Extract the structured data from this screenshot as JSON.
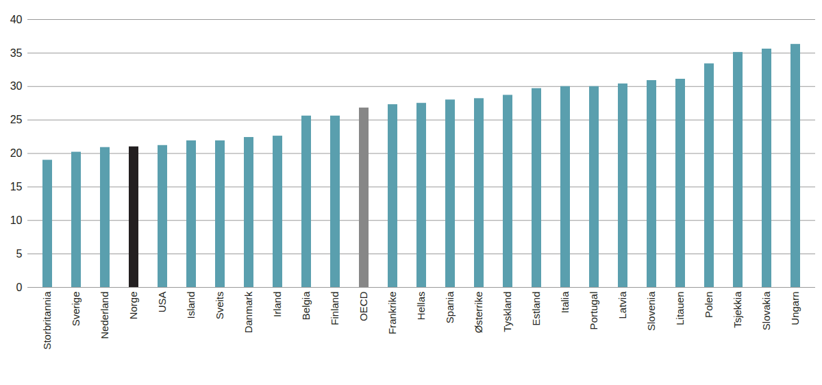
{
  "chart_data": {
    "type": "bar",
    "categories": [
      "Storbritannia",
      "Sverige",
      "Nederland",
      "Norge",
      "USA",
      "Island",
      "Sveits",
      "Danmark",
      "Irland",
      "Belgia",
      "Finland",
      "OECD",
      "Frankrike",
      "Hellas",
      "Spania",
      "Østerrike",
      "Tyskland",
      "Estland",
      "Italia",
      "Portugal",
      "Latvia",
      "Slovenia",
      "Litauen",
      "Polen",
      "Tsjekkia",
      "Slovakia",
      "Ungarn"
    ],
    "values": [
      19.0,
      20.2,
      20.9,
      21.0,
      21.2,
      21.9,
      21.9,
      22.4,
      22.6,
      25.6,
      25.6,
      26.8,
      27.3,
      27.5,
      28.0,
      28.2,
      28.7,
      29.7,
      30.0,
      30.0,
      30.4,
      30.9,
      31.1,
      33.4,
      35.1,
      35.6,
      36.3
    ],
    "colors": [
      "#5a9fae",
      "#5a9fae",
      "#5a9fae",
      "#231f20",
      "#5a9fae",
      "#5a9fae",
      "#5a9fae",
      "#5a9fae",
      "#5a9fae",
      "#5a9fae",
      "#5a9fae",
      "#878787",
      "#5a9fae",
      "#5a9fae",
      "#5a9fae",
      "#5a9fae",
      "#5a9fae",
      "#5a9fae",
      "#5a9fae",
      "#5a9fae",
      "#5a9fae",
      "#5a9fae",
      "#5a9fae",
      "#5a9fae",
      "#5a9fae",
      "#5a9fae",
      "#5a9fae"
    ],
    "ylim": [
      0,
      40
    ],
    "yticks": [
      0,
      5,
      10,
      15,
      20,
      25,
      30,
      35,
      40
    ],
    "grid": true
  }
}
